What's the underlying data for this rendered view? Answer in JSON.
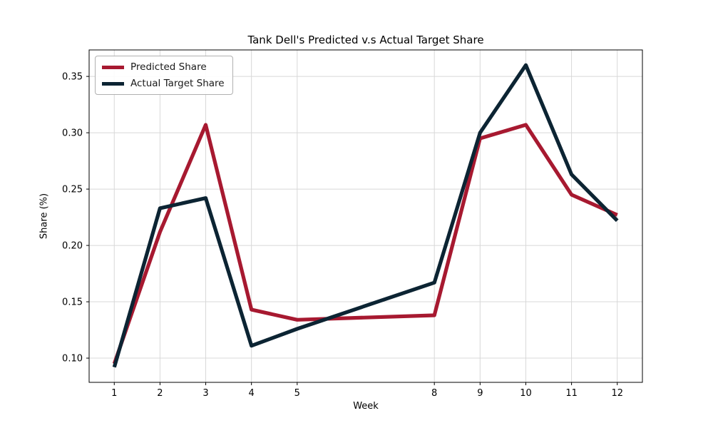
{
  "chart_data": {
    "type": "line",
    "title": "Tank Dell's Predicted v.s Actual Target Share",
    "xlabel": "Week",
    "ylabel": "Share (%)",
    "x": [
      1,
      2,
      3,
      4,
      5,
      8,
      9,
      10,
      11,
      12
    ],
    "x_tick_labels": [
      "1",
      "2",
      "3",
      "4",
      "5",
      "8",
      "9",
      "10",
      "11",
      "12"
    ],
    "y_ticks": [
      0.1,
      0.15,
      0.2,
      0.25,
      0.3,
      0.35
    ],
    "y_tick_labels": [
      "0.10",
      "0.15",
      "0.20",
      "0.25",
      "0.30",
      "0.35"
    ],
    "xlim": [
      0.45,
      12.55
    ],
    "ylim": [
      0.0785,
      0.3735
    ],
    "grid": true,
    "legend_position": "upper-left",
    "series": [
      {
        "name": "Predicted Share",
        "color": "#A71930",
        "values": [
          0.095,
          0.212,
          0.307,
          0.143,
          0.134,
          0.138,
          0.295,
          0.307,
          0.245,
          0.227
        ]
      },
      {
        "name": "Actual Target Share",
        "color": "#0C2433",
        "values": [
          0.092,
          0.233,
          0.242,
          0.111,
          0.126,
          0.167,
          0.3,
          0.36,
          0.263,
          0.222
        ]
      }
    ]
  },
  "colors": {
    "grid": "#d8d8d8",
    "spine": "#000000",
    "tick_text": "#000000"
  }
}
